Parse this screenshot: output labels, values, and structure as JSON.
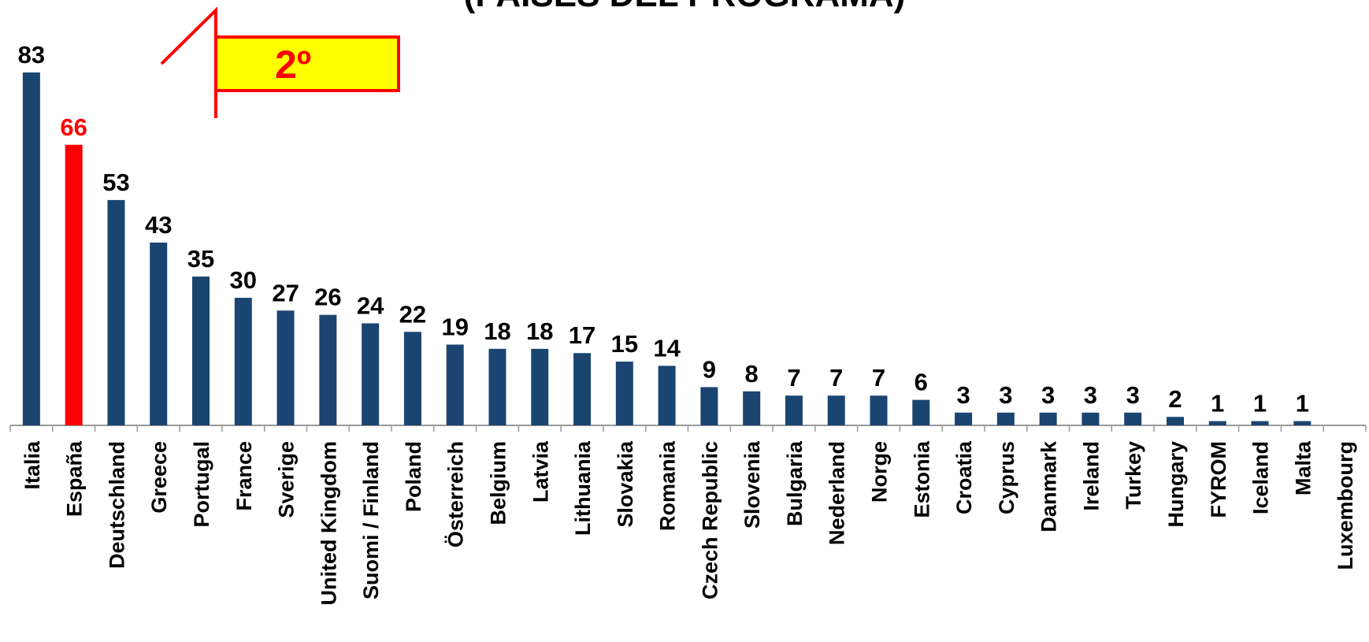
{
  "chart_data": {
    "type": "bar",
    "title": "(PAÍSES DEL PROGRAMA)",
    "annotation": "2º",
    "categories": [
      "Italia",
      "España",
      "Deutschland",
      "Greece",
      "Portugal",
      "France",
      "Sverige",
      "United Kingdom",
      "Suomi / Finland",
      "Poland",
      "Österreich",
      "Belgium",
      "Latvia",
      "Lithuania",
      "Slovakia",
      "Romania",
      "Czech Republic",
      "Slovenia",
      "Bulgaria",
      "Nederland",
      "Norge",
      "Estonia",
      "Croatia",
      "Cyprus",
      "Danmark",
      "Ireland",
      "Turkey",
      "Hungary",
      "FYROM",
      "Iceland",
      "Malta",
      "Luxembourg"
    ],
    "values": [
      83,
      66,
      53,
      43,
      35,
      30,
      27,
      26,
      24,
      22,
      19,
      18,
      18,
      17,
      15,
      14,
      9,
      8,
      7,
      7,
      7,
      6,
      3,
      3,
      3,
      3,
      3,
      2,
      1,
      1,
      1,
      null
    ],
    "color": "#1a4571",
    "colors": [
      "#1a4571",
      "#ff0000",
      "#1a4571",
      "#1a4571",
      "#1a4571",
      "#1a4571",
      "#1a4571",
      "#1a4571",
      "#1a4571",
      "#1a4571",
      "#1a4571",
      "#1a4571",
      "#1a4571",
      "#1a4571",
      "#1a4571",
      "#1a4571",
      "#1a4571",
      "#1a4571",
      "#1a4571",
      "#1a4571",
      "#1a4571",
      "#1a4571",
      "#1a4571",
      "#1a4571",
      "#1a4571",
      "#1a4571",
      "#1a4571",
      "#1a4571",
      "#1a4571",
      "#1a4571",
      "#1a4571",
      "#1a4571"
    ]
  }
}
